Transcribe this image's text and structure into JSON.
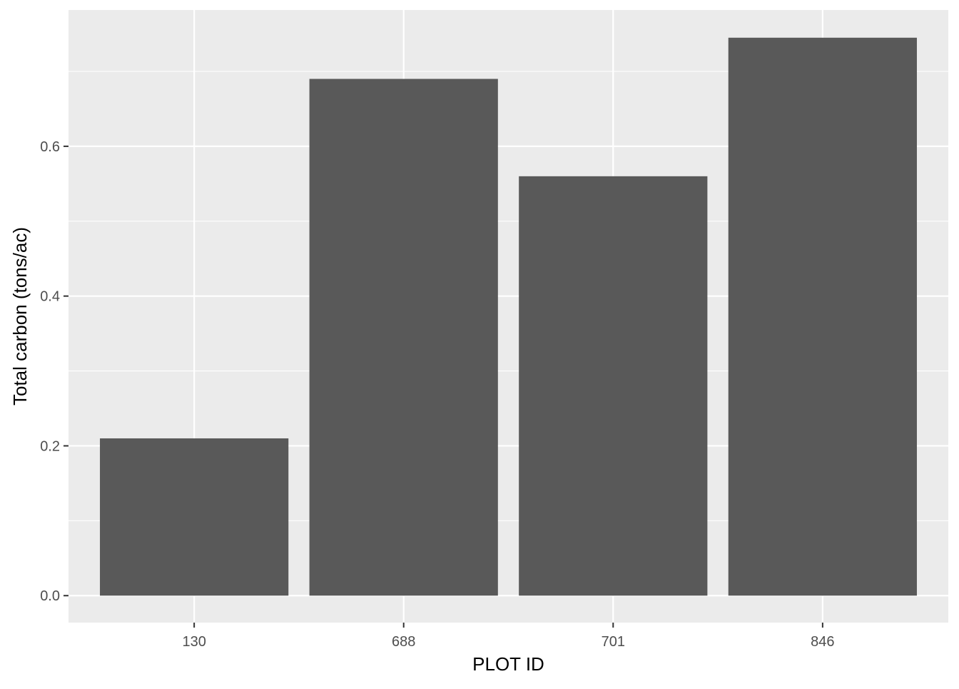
{
  "chart_data": {
    "type": "bar",
    "categories": [
      "130",
      "688",
      "701",
      "846"
    ],
    "values": [
      0.21,
      0.69,
      0.56,
      0.745
    ],
    "xlabel": "PLOT ID",
    "ylabel": "Total carbon (tons/ac)",
    "ylim": [
      -0.036,
      0.782
    ],
    "yticks": [
      0.0,
      0.2,
      0.4,
      0.6
    ],
    "ytick_labels": [
      "0.0",
      "0.2",
      "0.4",
      "0.6"
    ],
    "grid": true,
    "legend": "none"
  },
  "colors": {
    "panel_background": "#ebebeb",
    "grid_major": "#ffffff",
    "bar_fill": "#595959",
    "tick_text": "#4d4d4d",
    "tick_mark": "#333333"
  }
}
